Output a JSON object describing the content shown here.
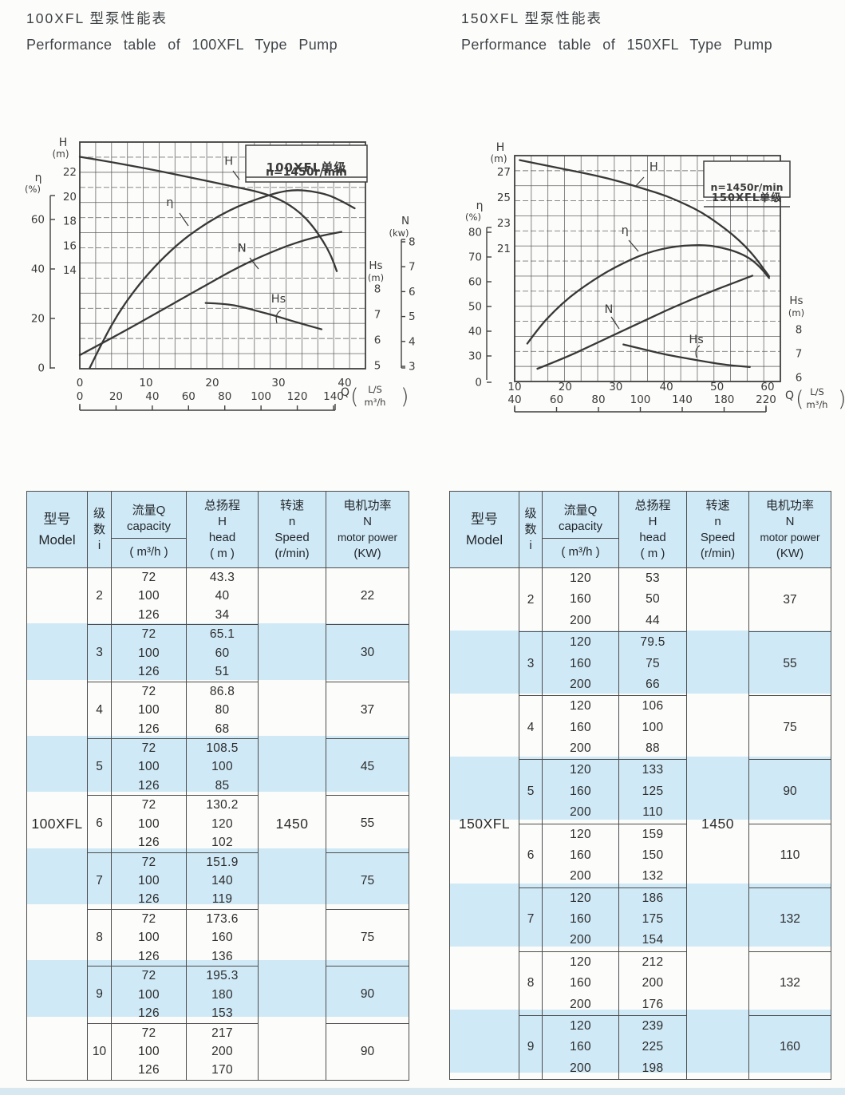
{
  "page": {
    "stripe_color": "#cfe9f6",
    "border_color": "#4d4d4d",
    "ink_color": "#3b3b3b"
  },
  "sections": [
    {
      "title_zh": "100XFL 型泵性能表",
      "title_en": "Performance table of 100XFL Type Pump",
      "chart": {
        "type": "line",
        "legend_model": "100XFL单级",
        "legend_speed": "n=1450r/min",
        "axis_H": {
          "label": "H",
          "unit": "(m)",
          "ticks": [
            22,
            20,
            18,
            16,
            14
          ]
        },
        "axis_eta": {
          "label": "η",
          "unit": "(%)",
          "ticks": [
            60,
            40,
            20,
            0
          ]
        },
        "axis_N": {
          "label": "N",
          "unit": "(kw)",
          "ticks": [
            8,
            7,
            6,
            5,
            4,
            3
          ]
        },
        "axis_Hs": {
          "label": "Hs",
          "unit": "(m)",
          "ticks": [
            8,
            7,
            6,
            5
          ]
        },
        "x_axis": {
          "ls_ticks": [
            0,
            10,
            20,
            30,
            40
          ],
          "m3h_ticks": [
            0,
            20,
            40,
            60,
            80,
            100,
            120,
            140
          ],
          "q_label": "Q",
          "unit_top": "L/S",
          "unit_bottom": "m³/h"
        },
        "series": [
          {
            "name": "H",
            "scale": "H",
            "label_at": [
              22.5,
              22.55
            ],
            "points": [
              [
                0,
                23.2
              ],
              [
                4,
                22.85
              ],
              [
                8,
                22.45
              ],
              [
                12,
                22.05
              ],
              [
                16,
                21.6
              ],
              [
                20,
                21.15
              ],
              [
                24,
                20.7
              ],
              [
                27,
                20.35
              ],
              [
                29.5,
                19.9
              ],
              [
                31.5,
                19.35
              ],
              [
                33.5,
                18.55
              ],
              [
                35.2,
                17.55
              ],
              [
                36.8,
                16.3
              ],
              [
                38,
                15.1
              ],
              [
                38.8,
                13.9
              ]
            ]
          },
          {
            "name": "η",
            "scale": "eta",
            "label_at": [
              13.6,
              65.5
            ],
            "points": [
              [
                1.5,
                0
              ],
              [
                3.5,
                11
              ],
              [
                6,
                23
              ],
              [
                9,
                34
              ],
              [
                12,
                43
              ],
              [
                15,
                50.5
              ],
              [
                18,
                56.5
              ],
              [
                21,
                61.5
              ],
              [
                24,
                65.5
              ],
              [
                27,
                68.5
              ],
              [
                30,
                71
              ],
              [
                32.5,
                72
              ],
              [
                35,
                71.5
              ],
              [
                37.5,
                70
              ],
              [
                39.5,
                67.5
              ],
              [
                41.5,
                64.5
              ]
            ]
          },
          {
            "name": "N",
            "scale": "N",
            "label_at": [
              24.5,
              7.6
            ],
            "points": [
              [
                0,
                3.45
              ],
              [
                6,
                4.3
              ],
              [
                12,
                5.2
              ],
              [
                18,
                6.1
              ],
              [
                24,
                7.0
              ],
              [
                29,
                7.6
              ],
              [
                33,
                8.0
              ],
              [
                36.5,
                8.25
              ],
              [
                39.5,
                8.4
              ]
            ]
          },
          {
            "name": "Hs",
            "scale": "Hs",
            "label_at": [
              30,
              7.47
            ],
            "points": [
              [
                19,
                7.45
              ],
              [
                22,
                7.42
              ],
              [
                24.5,
                7.3
              ],
              [
                27,
                7.12
              ],
              [
                29.5,
                6.95
              ],
              [
                32,
                6.75
              ],
              [
                34,
                6.6
              ],
              [
                36.5,
                6.42
              ]
            ]
          }
        ]
      },
      "table": {
        "header": {
          "model": [
            "型号",
            "Model"
          ],
          "stage": [
            "级",
            "数",
            "i"
          ],
          "capacity_title": [
            "流量Q",
            "capacity"
          ],
          "capacity_unit": "( m³/h )",
          "head": [
            "总扬程",
            "H",
            "head",
            "( m )"
          ],
          "speed": [
            "转速",
            "n",
            "Speed",
            "(r/min)"
          ],
          "power": [
            "电机功率",
            "N",
            "motor power",
            "(KW)"
          ]
        },
        "model": "100XFL",
        "speed": "1450",
        "groups": [
          {
            "i": "2",
            "capacity": [
              "72",
              "100",
              "126"
            ],
            "head": [
              "43.3",
              "40",
              "34"
            ],
            "power": "22"
          },
          {
            "i": "3",
            "capacity": [
              "72",
              "100",
              "126"
            ],
            "head": [
              "65.1",
              "60",
              "51"
            ],
            "power": "30"
          },
          {
            "i": "4",
            "capacity": [
              "72",
              "100",
              "126"
            ],
            "head": [
              "86.8",
              "80",
              "68"
            ],
            "power": "37"
          },
          {
            "i": "5",
            "capacity": [
              "72",
              "100",
              "126"
            ],
            "head": [
              "108.5",
              "100",
              "85"
            ],
            "power": "45"
          },
          {
            "i": "6",
            "capacity": [
              "72",
              "100",
              "126"
            ],
            "head": [
              "130.2",
              "120",
              "102"
            ],
            "power": "55"
          },
          {
            "i": "7",
            "capacity": [
              "72",
              "100",
              "126"
            ],
            "head": [
              "151.9",
              "140",
              "119"
            ],
            "power": "75"
          },
          {
            "i": "8",
            "capacity": [
              "72",
              "100",
              "126"
            ],
            "head": [
              "173.6",
              "160",
              "136"
            ],
            "power": "75"
          },
          {
            "i": "9",
            "capacity": [
              "72",
              "100",
              "126"
            ],
            "head": [
              "195.3",
              "180",
              "153"
            ],
            "power": "90"
          },
          {
            "i": "10",
            "capacity": [
              "72",
              "100",
              "126"
            ],
            "head": [
              "217",
              "200",
              "170"
            ],
            "power": "90"
          }
        ]
      }
    },
    {
      "title_zh": "150XFL 型泵性能表",
      "title_en": "Performance table of 150XFL Type Pump",
      "chart": {
        "type": "line",
        "legend_model": "150XFL单级",
        "legend_speed": "n=1450r/min",
        "axis_H": {
          "label": "H",
          "unit": "(m)",
          "ticks": [
            27,
            25,
            23,
            21
          ]
        },
        "axis_eta": {
          "label": "η",
          "unit": "(%)",
          "ticks": [
            80,
            70,
            60,
            50,
            40,
            30,
            0
          ]
        },
        "axis_Hs": {
          "label": "Hs",
          "unit": "(m)",
          "ticks": [
            8,
            7,
            6
          ]
        },
        "x_axis": {
          "ls_ticks": [
            10,
            20,
            30,
            40,
            50,
            60
          ],
          "m3h_ticks": [
            40,
            60,
            80,
            100,
            140,
            180,
            220
          ],
          "q_label": "Q",
          "unit_top": "L/S",
          "unit_bottom": "m³/h"
        },
        "series": [
          {
            "name": "H",
            "scale": "H",
            "label_at": [
              37.5,
              27.1
            ],
            "points": [
              [
                11,
                27.9
              ],
              [
                16,
                27.5
              ],
              [
                21,
                27.1
              ],
              [
                26,
                26.7
              ],
              [
                31,
                26.2
              ],
              [
                36,
                25.6
              ],
              [
                40,
                25.1
              ],
              [
                44,
                24.4
              ],
              [
                47,
                23.8
              ],
              [
                50,
                23.0
              ],
              [
                53,
                22.1
              ],
              [
                55.5,
                21.2
              ],
              [
                57.5,
                20.3
              ],
              [
                59,
                19.5
              ],
              [
                60.3,
                18.8
              ]
            ]
          },
          {
            "name": "η",
            "scale": "eta",
            "label_at": [
              31.8,
              79.3
            ],
            "points": [
              [
                12.5,
                35
              ],
              [
                15,
                42
              ],
              [
                18,
                48.5
              ],
              [
                21,
                54
              ],
              [
                24,
                58.5
              ],
              [
                27,
                62.5
              ],
              [
                30,
                66
              ],
              [
                33,
                69
              ],
              [
                36,
                71.5
              ],
              [
                39,
                73.2
              ],
              [
                42,
                74.3
              ],
              [
                45,
                74.8
              ],
              [
                48,
                74.8
              ],
              [
                51,
                73.8
              ],
              [
                54,
                72
              ],
              [
                56.5,
                69.5
              ],
              [
                58.5,
                66
              ],
              [
                60.3,
                61.5
              ]
            ]
          },
          {
            "name": "N",
            "scale": "N",
            "label_at": [
              28.6,
              14.8
            ],
            "points": [
              [
                14.5,
                8.2
              ],
              [
                20,
                9.5
              ],
              [
                25,
                10.9
              ],
              [
                30,
                12.3
              ],
              [
                35,
                13.7
              ],
              [
                40,
                15.1
              ],
              [
                45,
                16.4
              ],
              [
                50,
                17.6
              ],
              [
                54,
                18.5
              ],
              [
                57,
                19.2
              ]
            ]
          },
          {
            "name": "Hs",
            "scale": "Hs",
            "label_at": [
              45.9,
              7.43
            ],
            "points": [
              [
                31.5,
                7.38
              ],
              [
                36,
                7.15
              ],
              [
                40,
                6.95
              ],
              [
                44,
                6.8
              ],
              [
                48,
                6.65
              ],
              [
                52,
                6.52
              ],
              [
                56.5,
                6.44
              ]
            ]
          }
        ]
      },
      "table": {
        "header": {
          "model": [
            "型号",
            "Model"
          ],
          "stage": [
            "级",
            "数",
            "i"
          ],
          "capacity_title": [
            "流量Q",
            "capacity"
          ],
          "capacity_unit": "( m³/h )",
          "head": [
            "总扬程",
            "H",
            "head",
            "( m )"
          ],
          "speed": [
            "转速",
            "n",
            "Speed",
            "(r/min)"
          ],
          "power": [
            "电机功率",
            "N",
            "motor power",
            "(KW)"
          ]
        },
        "model": "150XFL",
        "speed": "1450",
        "groups": [
          {
            "i": "2",
            "capacity": [
              "120",
              "160",
              "200"
            ],
            "head": [
              "53",
              "50",
              "44"
            ],
            "power": "37"
          },
          {
            "i": "3",
            "capacity": [
              "120",
              "160",
              "200"
            ],
            "head": [
              "79.5",
              "75",
              "66"
            ],
            "power": "55"
          },
          {
            "i": "4",
            "capacity": [
              "120",
              "160",
              "200"
            ],
            "head": [
              "106",
              "100",
              "88"
            ],
            "power": "75"
          },
          {
            "i": "5",
            "capacity": [
              "120",
              "160",
              "200"
            ],
            "head": [
              "133",
              "125",
              "110"
            ],
            "power": "90"
          },
          {
            "i": "6",
            "capacity": [
              "120",
              "160",
              "200"
            ],
            "head": [
              "159",
              "150",
              "132"
            ],
            "power": "110"
          },
          {
            "i": "7",
            "capacity": [
              "120",
              "160",
              "200"
            ],
            "head": [
              "186",
              "175",
              "154"
            ],
            "power": "132"
          },
          {
            "i": "8",
            "capacity": [
              "120",
              "160",
              "200"
            ],
            "head": [
              "212",
              "200",
              "176"
            ],
            "power": "132"
          },
          {
            "i": "9",
            "capacity": [
              "120",
              "160",
              "200"
            ],
            "head": [
              "239",
              "225",
              "198"
            ],
            "power": "160"
          }
        ]
      }
    }
  ]
}
